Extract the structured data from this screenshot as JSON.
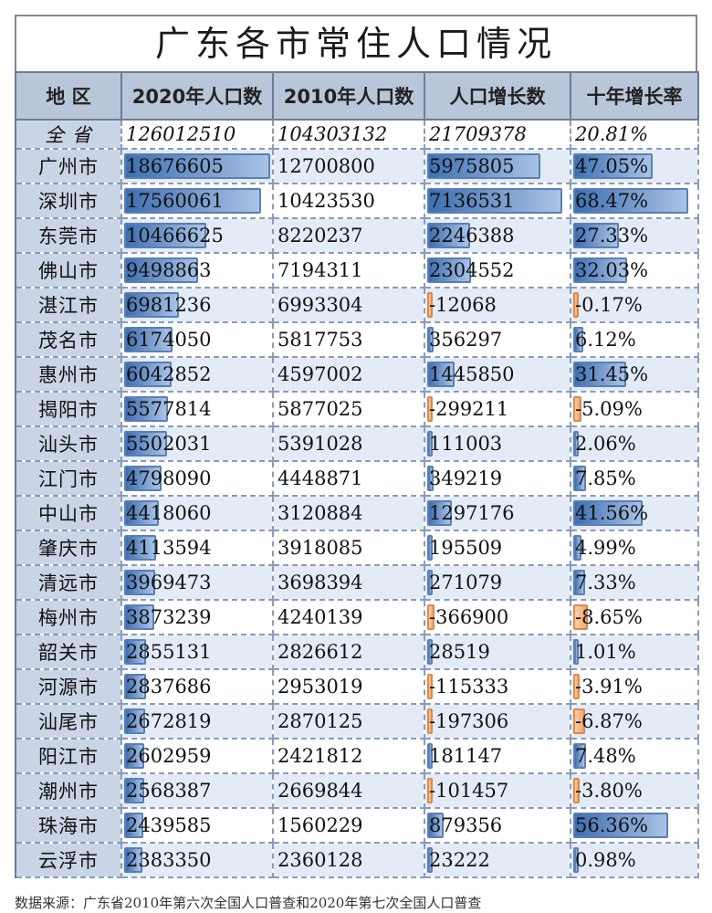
{
  "title": "广东各市常住人口情况",
  "headers": [
    "地  区",
    "2020年人口数",
    "2010年人口数",
    "人口增长数",
    "十年增长率"
  ],
  "total": {
    "name": "全  省",
    "pop2020": "126012510",
    "pop2010": "104303132",
    "growth": "21709378",
    "rate": "20.81%"
  },
  "rows": [
    {
      "name": "广州市",
      "pop2020": "18676605",
      "pop2010": "12700800",
      "growth": "5975805",
      "rate": "47.05%"
    },
    {
      "name": "深圳市",
      "pop2020": "17560061",
      "pop2010": "10423530",
      "growth": "7136531",
      "rate": "68.47%"
    },
    {
      "name": "东莞市",
      "pop2020": "10466625",
      "pop2010": "8220237",
      "growth": "2246388",
      "rate": "27.33%"
    },
    {
      "name": "佛山市",
      "pop2020": "9498863",
      "pop2010": "7194311",
      "growth": "2304552",
      "rate": "32.03%"
    },
    {
      "name": "湛江市",
      "pop2020": "6981236",
      "pop2010": "6993304",
      "growth": "-12068",
      "rate": "-0.17%"
    },
    {
      "name": "茂名市",
      "pop2020": "6174050",
      "pop2010": "5817753",
      "growth": "356297",
      "rate": "6.12%"
    },
    {
      "name": "惠州市",
      "pop2020": "6042852",
      "pop2010": "4597002",
      "growth": "1445850",
      "rate": "31.45%"
    },
    {
      "name": "揭阳市",
      "pop2020": "5577814",
      "pop2010": "5877025",
      "growth": "-299211",
      "rate": "-5.09%"
    },
    {
      "name": "汕头市",
      "pop2020": "5502031",
      "pop2010": "5391028",
      "growth": "111003",
      "rate": "2.06%"
    },
    {
      "name": "江门市",
      "pop2020": "4798090",
      "pop2010": "4448871",
      "growth": "349219",
      "rate": "7.85%"
    },
    {
      "name": "中山市",
      "pop2020": "4418060",
      "pop2010": "3120884",
      "growth": "1297176",
      "rate": "41.56%"
    },
    {
      "name": "肇庆市",
      "pop2020": "4113594",
      "pop2010": "3918085",
      "growth": "195509",
      "rate": "4.99%"
    },
    {
      "name": "清远市",
      "pop2020": "3969473",
      "pop2010": "3698394",
      "growth": "271079",
      "rate": "7.33%"
    },
    {
      "name": "梅州市",
      "pop2020": "3873239",
      "pop2010": "4240139",
      "growth": "-366900",
      "rate": "-8.65%"
    },
    {
      "name": "韶关市",
      "pop2020": "2855131",
      "pop2010": "2826612",
      "growth": "28519",
      "rate": "1.01%"
    },
    {
      "name": "河源市",
      "pop2020": "2837686",
      "pop2010": "2953019",
      "growth": "-115333",
      "rate": "-3.91%"
    },
    {
      "name": "汕尾市",
      "pop2020": "2672819",
      "pop2010": "2870125",
      "growth": "-197306",
      "rate": "-6.87%"
    },
    {
      "name": "阳江市",
      "pop2020": "2602959",
      "pop2010": "2421812",
      "growth": "181147",
      "rate": "7.48%"
    },
    {
      "name": "潮州市",
      "pop2020": "2568387",
      "pop2010": "2669844",
      "growth": "-101457",
      "rate": "-3.80%"
    },
    {
      "name": "珠海市",
      "pop2020": "2439585",
      "pop2010": "1560229",
      "growth": "879356",
      "rate": "56.36%"
    },
    {
      "name": "云浮市",
      "pop2020": "2383350",
      "pop2010": "2360128",
      "growth": "23222",
      "rate": "0.98%"
    }
  ],
  "source": "数据来源：广东省2010年第六次全国人口普查和2020年第七次全国人口普查",
  "colors": {
    "header": "#b9c6da",
    "positive_bar": "#3f6fb0",
    "negative_bar": "#f0a96a",
    "stripe": "#e3ebf7"
  }
}
